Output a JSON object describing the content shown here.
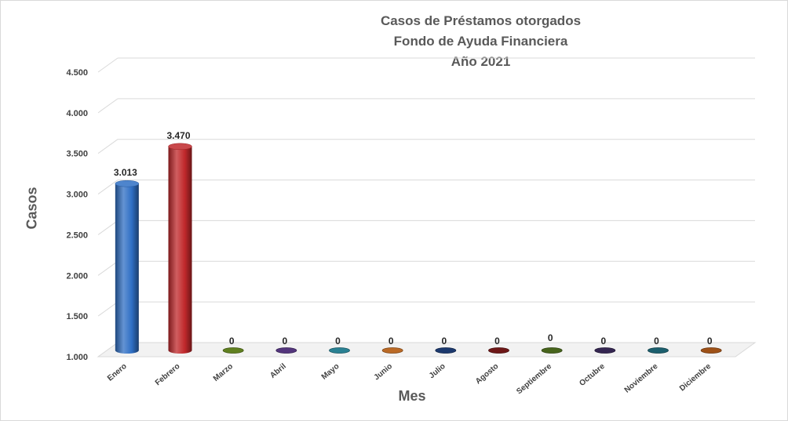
{
  "chart_data": {
    "type": "bar",
    "title_lines": [
      "Casos de Préstamos otorgados",
      "Fondo de Ayuda Financiera",
      "Año 2021"
    ],
    "xlabel": "Mes",
    "ylabel": "Casos",
    "ylim": [
      1000,
      4500
    ],
    "yticks": [
      "1.000",
      "1.500",
      "2.000",
      "2.500",
      "3.000",
      "3.500",
      "4.000",
      "4.500"
    ],
    "ytick_values": [
      1000,
      1500,
      2000,
      2500,
      3000,
      3500,
      4000,
      4500
    ],
    "categories": [
      "Enero",
      "Febrero",
      "Marzo",
      "Abril",
      "Mayo",
      "Junio",
      "Julio",
      "Agosto",
      "Septiembre",
      "Octubre",
      "Noviembre",
      "Diciembre"
    ],
    "values": [
      3013,
      3470,
      0,
      0,
      0,
      0,
      0,
      0,
      0,
      0,
      0,
      0
    ],
    "data_labels": [
      "3.013",
      "3.470",
      "0",
      "0",
      "0",
      "0",
      "0",
      "0",
      "0",
      "0",
      "0",
      "0"
    ],
    "colors": [
      "#2f6fc4",
      "#c0282b",
      "#6b8e23",
      "#5c3b8a",
      "#2f8fa3",
      "#d0762a",
      "#1f3f7a",
      "#7a1a1a",
      "#4f6f1f",
      "#3a2a5a",
      "#1f6a7a",
      "#b05a1a"
    ],
    "grid": true,
    "style": "3d-cylinder"
  }
}
